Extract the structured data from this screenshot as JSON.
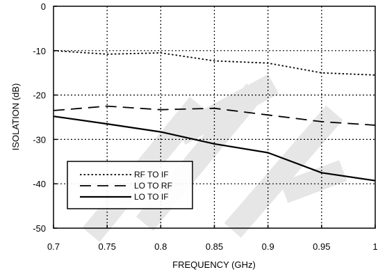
{
  "chart_data": {
    "type": "line",
    "xlabel": "FREQUENCY (GHz)",
    "ylabel": "ISOLATION (dB)",
    "xlim": [
      0.7,
      1.0
    ],
    "ylim": [
      -50,
      0
    ],
    "x_ticks": [
      0.7,
      0.75,
      0.8,
      0.85,
      0.9,
      0.95,
      1.0
    ],
    "x_tick_labels": [
      "0.7",
      "0.75",
      "0.8",
      "0.85",
      "0.9",
      "0.95",
      "1"
    ],
    "y_ticks": [
      0,
      -10,
      -20,
      -30,
      -40,
      -50
    ],
    "y_tick_labels": [
      "0",
      "-10",
      "-20",
      "-30",
      "-40",
      "-50"
    ],
    "grid": true,
    "legend_position": "bottom-left",
    "watermark": "TE",
    "series": [
      {
        "name": "RF TO IF",
        "style": "dotted",
        "x": [
          0.7,
          0.75,
          0.8,
          0.85,
          0.9,
          0.95,
          1.0
        ],
        "y": [
          -10,
          -10.8,
          -10.5,
          -12.3,
          -12.8,
          -15,
          -15.5
        ]
      },
      {
        "name": "LO TO RF",
        "style": "dashed",
        "x": [
          0.7,
          0.75,
          0.8,
          0.85,
          0.9,
          0.95,
          1.0
        ],
        "y": [
          -23.5,
          -22.5,
          -23.3,
          -23,
          -24.5,
          -26,
          -26.8
        ]
      },
      {
        "name": "LO TO IF",
        "style": "solid",
        "x": [
          0.7,
          0.75,
          0.8,
          0.85,
          0.9,
          0.95,
          1.0
        ],
        "y": [
          -24.8,
          -26.5,
          -28.3,
          -31,
          -33,
          -37.5,
          -39.3
        ]
      }
    ]
  }
}
